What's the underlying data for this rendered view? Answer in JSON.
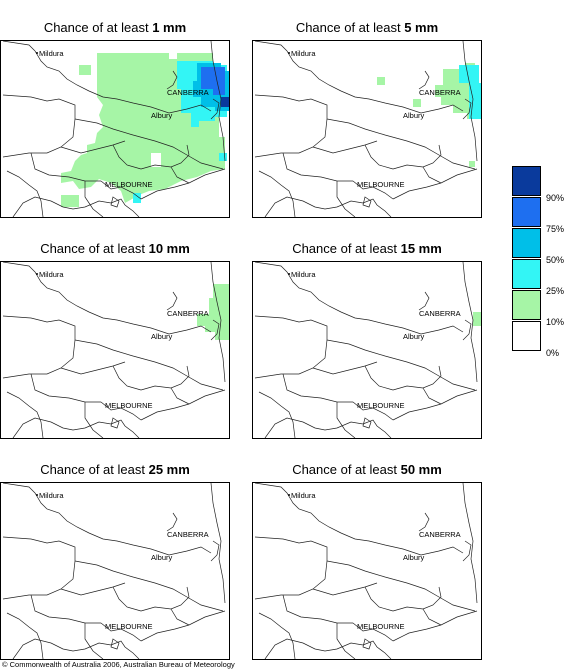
{
  "panels": [
    {
      "title_prefix": "Chance of at least ",
      "amount": "1 mm"
    },
    {
      "title_prefix": "Chance of at least ",
      "amount": "5 mm"
    },
    {
      "title_prefix": "Chance of at least ",
      "amount": "10 mm"
    },
    {
      "title_prefix": "Chance of at least ",
      "amount": "15 mm"
    },
    {
      "title_prefix": "Chance of at least ",
      "amount": "25 mm"
    },
    {
      "title_prefix": "Chance of at least ",
      "amount": "50 mm"
    }
  ],
  "places": {
    "mildura": "Mildura",
    "canberra": "CANBERRA",
    "albury": "Albury",
    "melbourne": "MELBOURNE"
  },
  "legend": {
    "classes": [
      {
        "label": "90%",
        "color": "#0a3a9c"
      },
      {
        "label": "75%",
        "color": "#1e6ff0"
      },
      {
        "label": "50%",
        "color": "#00bfe8"
      },
      {
        "label": "25%",
        "color": "#33f5f5"
      },
      {
        "label": "10%",
        "color": "#a6f5a6"
      },
      {
        "label": "0%",
        "color": "#ffffff"
      }
    ]
  },
  "copyright": "© Commonwealth of Australia 2006, Australian Bureau of Meteorology"
}
